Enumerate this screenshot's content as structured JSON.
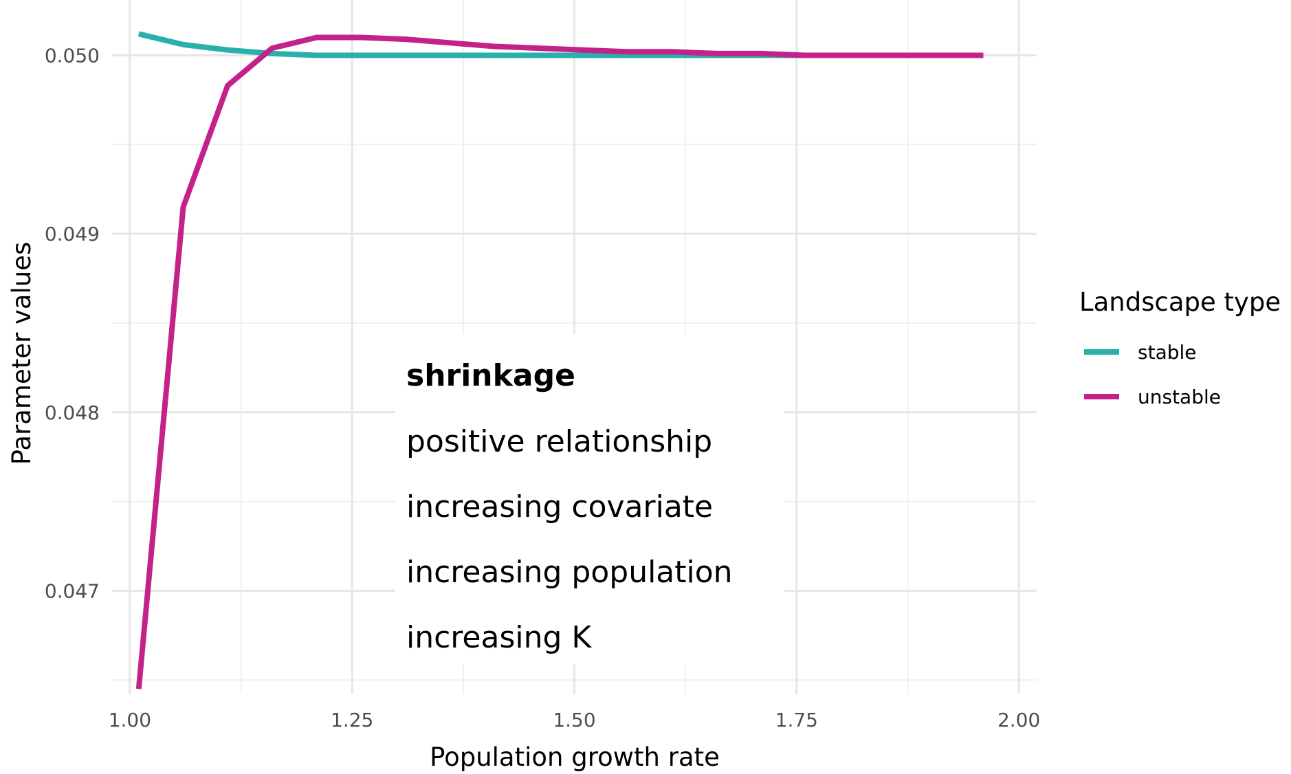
{
  "chart_data": {
    "type": "line",
    "xlabel": "Population growth rate",
    "ylabel": "Parameter values",
    "xlim": [
      0.98,
      2.02
    ],
    "ylim": [
      0.04642,
      0.05031
    ],
    "x_ticks": [
      1.0,
      1.25,
      1.5,
      1.75,
      2.0
    ],
    "x_tick_labels": [
      "1.00",
      "1.25",
      "1.50",
      "1.75",
      "2.00"
    ],
    "y_ticks": [
      0.047,
      0.048,
      0.049,
      0.05
    ],
    "y_tick_labels": [
      "0.047",
      "0.048",
      "0.049",
      "0.050"
    ],
    "grid": true,
    "legend": {
      "title": "Landscape type",
      "position": "right"
    },
    "series": [
      {
        "name": "stable",
        "color": "#2ab0aa",
        "x": [
          1.01,
          1.06,
          1.11,
          1.16,
          1.21,
          1.26,
          1.31,
          1.36,
          1.41,
          1.46,
          1.51,
          1.56,
          1.61,
          1.66,
          1.71,
          1.76,
          1.81,
          1.86,
          1.91,
          1.96
        ],
        "y": [
          0.05012,
          0.05006,
          0.05003,
          0.05001,
          0.05,
          0.05,
          0.05,
          0.05,
          0.05,
          0.05,
          0.05,
          0.05,
          0.05,
          0.05,
          0.05,
          0.05,
          0.05,
          0.05,
          0.05,
          0.05
        ]
      },
      {
        "name": "unstable",
        "color": "#c4228a",
        "x": [
          1.01,
          1.06,
          1.11,
          1.16,
          1.21,
          1.26,
          1.31,
          1.36,
          1.41,
          1.46,
          1.51,
          1.56,
          1.61,
          1.66,
          1.71,
          1.76,
          1.81,
          1.86,
          1.91,
          1.96
        ],
        "y": [
          0.04645,
          0.04915,
          0.04983,
          0.05004,
          0.0501,
          0.0501,
          0.05009,
          0.05007,
          0.05005,
          0.05004,
          0.05003,
          0.05002,
          0.05002,
          0.05001,
          0.05001,
          0.05,
          0.05,
          0.05,
          0.05,
          0.05
        ]
      }
    ]
  },
  "annotation": {
    "highlight": "shrinkage",
    "highlight_color": "#ff0000",
    "lines": [
      "positive relationship",
      "increasing covariate",
      "increasing population",
      "increasing K"
    ]
  }
}
